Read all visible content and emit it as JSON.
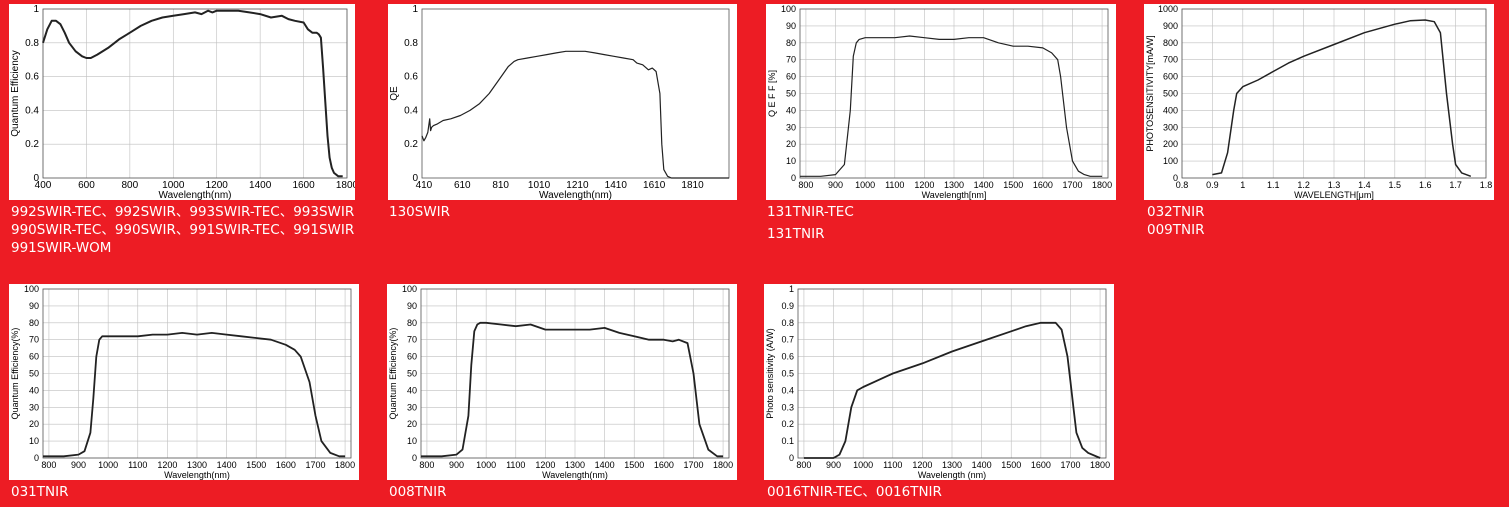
{
  "chart_data": [
    {
      "type": "line",
      "caption": [
        "992SWIR-TEC、992SWIR、993SWIR-TEC、993SWIR",
        "990SWIR-TEC、990SWIR、991SWIR-TEC、991SWIR",
        "991SWIR-WOM"
      ],
      "xlabel": "Wavelength(nm)",
      "ylabel": "Quantum Efficiency",
      "xlim": [
        400,
        1800
      ],
      "ylim": [
        0,
        1
      ],
      "grid": true,
      "xticks": [
        400,
        600,
        800,
        1000,
        1200,
        1400,
        1600,
        1800
      ],
      "xtick_labels": [
        "400",
        "600",
        "800",
        "1000",
        "1200",
        "1400",
        "1600",
        "1800"
      ],
      "yticks": [
        0,
        0.2,
        0.4,
        0.6,
        0.8,
        1
      ],
      "ytick_labels": [
        "0",
        "0.2",
        "0.4",
        "0.6",
        "0.8",
        "1"
      ],
      "x": [
        400,
        420,
        440,
        460,
        480,
        500,
        520,
        550,
        580,
        600,
        620,
        650,
        700,
        750,
        800,
        850,
        900,
        950,
        1000,
        1050,
        1100,
        1130,
        1160,
        1180,
        1200,
        1250,
        1300,
        1350,
        1400,
        1450,
        1500,
        1530,
        1560,
        1600,
        1620,
        1640,
        1660,
        1670,
        1680,
        1690,
        1700,
        1710,
        1720,
        1730,
        1740,
        1760,
        1780
      ],
      "y": [
        0.8,
        0.88,
        0.93,
        0.93,
        0.91,
        0.86,
        0.8,
        0.75,
        0.72,
        0.71,
        0.71,
        0.73,
        0.77,
        0.82,
        0.86,
        0.9,
        0.93,
        0.95,
        0.96,
        0.97,
        0.98,
        0.97,
        0.99,
        0.98,
        0.99,
        0.99,
        0.99,
        0.98,
        0.97,
        0.95,
        0.96,
        0.94,
        0.93,
        0.92,
        0.88,
        0.86,
        0.86,
        0.85,
        0.83,
        0.65,
        0.45,
        0.25,
        0.12,
        0.06,
        0.03,
        0.01,
        0.01
      ]
    },
    {
      "type": "line",
      "caption": [
        "130SWIR"
      ],
      "xlabel": "Wavelength(nm)",
      "ylabel": "QE",
      "xlim": [
        400,
        2000
      ],
      "ylim": [
        0,
        1
      ],
      "grid": false,
      "xticks": [
        410,
        610,
        810,
        1010,
        1210,
        1410,
        1610,
        1810
      ],
      "xtick_labels": [
        "410",
        "610",
        "810",
        "1010",
        "1210",
        "1410",
        "1610",
        "1810"
      ],
      "yticks": [
        0,
        0.2,
        0.4,
        0.6,
        0.8,
        1
      ],
      "ytick_labels": [
        "0",
        "0.2",
        "0.4",
        "0.6",
        "0.8",
        "1"
      ],
      "x": [
        400,
        410,
        420,
        430,
        440,
        445,
        450,
        460,
        480,
        510,
        550,
        600,
        650,
        700,
        750,
        800,
        850,
        880,
        900,
        950,
        1000,
        1050,
        1100,
        1150,
        1200,
        1250,
        1300,
        1350,
        1400,
        1450,
        1500,
        1520,
        1550,
        1580,
        1600,
        1620,
        1640,
        1650,
        1660,
        1680,
        1700,
        1750,
        1800,
        1900,
        2000
      ],
      "y": [
        0.25,
        0.22,
        0.24,
        0.27,
        0.35,
        0.28,
        0.3,
        0.31,
        0.32,
        0.34,
        0.35,
        0.37,
        0.4,
        0.44,
        0.5,
        0.58,
        0.66,
        0.69,
        0.7,
        0.71,
        0.72,
        0.73,
        0.74,
        0.75,
        0.75,
        0.75,
        0.74,
        0.73,
        0.72,
        0.71,
        0.7,
        0.68,
        0.67,
        0.64,
        0.65,
        0.63,
        0.5,
        0.2,
        0.05,
        0.01,
        0.0,
        0.0,
        0.0,
        0.0,
        0.0
      ]
    },
    {
      "type": "line",
      "caption": [
        "131TNIR-TEC",
        "131TNIR"
      ],
      "xlabel": "Wavelength[nm]",
      "ylabel": "Q E F F [%]",
      "xlim": [
        780,
        1820
      ],
      "ylim": [
        0,
        100
      ],
      "grid": true,
      "xticks": [
        800,
        900,
        1000,
        1100,
        1200,
        1300,
        1400,
        1500,
        1600,
        1700,
        1800
      ],
      "xtick_labels": [
        "800",
        "900",
        "1000",
        "1100",
        "1200",
        "1300",
        "1400",
        "1500",
        "1600",
        "1700",
        "1800"
      ],
      "yticks": [
        0,
        10,
        20,
        30,
        40,
        50,
        60,
        70,
        80,
        90,
        100
      ],
      "ytick_labels": [
        "0",
        "10",
        "20",
        "30",
        "40",
        "50",
        "60",
        "70",
        "80",
        "90",
        "100"
      ],
      "x": [
        780,
        850,
        900,
        930,
        950,
        960,
        970,
        980,
        1000,
        1050,
        1100,
        1150,
        1200,
        1250,
        1300,
        1350,
        1400,
        1450,
        1500,
        1550,
        1600,
        1630,
        1650,
        1660,
        1680,
        1700,
        1720,
        1740,
        1760,
        1800
      ],
      "y": [
        1,
        1,
        2,
        8,
        40,
        72,
        80,
        82,
        83,
        83,
        83,
        84,
        83,
        82,
        82,
        83,
        83,
        80,
        78,
        78,
        77,
        74,
        70,
        60,
        30,
        10,
        4,
        2,
        1,
        1
      ]
    },
    {
      "type": "line",
      "caption": [
        "032TNIR",
        "009TNIR"
      ],
      "xlabel": "WAVELENGTH[μm]",
      "ylabel": "PHOTOSENSITIVITY[mA/W]",
      "xlim": [
        0.8,
        1.8
      ],
      "ylim": [
        0,
        1000
      ],
      "grid": true,
      "xticks": [
        0.8,
        0.9,
        1.0,
        1.1,
        1.2,
        1.3,
        1.4,
        1.5,
        1.6,
        1.7,
        1.8
      ],
      "xtick_labels": [
        "0.8",
        "0.9",
        "1",
        "1.1",
        "1.2",
        "1.3",
        "1.4",
        "1.5",
        "1.6",
        "1.7",
        "1.8"
      ],
      "yticks": [
        0,
        100,
        200,
        300,
        400,
        500,
        600,
        700,
        800,
        900,
        1000
      ],
      "ytick_labels": [
        "0",
        "100",
        "200",
        "300",
        "400",
        "500",
        "600",
        "700",
        "800",
        "900",
        "1000"
      ],
      "x": [
        0.9,
        0.93,
        0.95,
        0.97,
        0.98,
        1.0,
        1.05,
        1.1,
        1.15,
        1.2,
        1.3,
        1.4,
        1.5,
        1.55,
        1.6,
        1.63,
        1.65,
        1.67,
        1.69,
        1.7,
        1.72,
        1.75
      ],
      "y": [
        20,
        30,
        150,
        400,
        500,
        540,
        580,
        630,
        680,
        720,
        790,
        860,
        910,
        930,
        935,
        925,
        860,
        500,
        200,
        80,
        30,
        10
      ]
    },
    {
      "type": "line",
      "caption": [
        "031TNIR"
      ],
      "xlabel": "Wavelength(nm)",
      "ylabel": "Quantum Efficiency(%)",
      "xlim": [
        780,
        1820
      ],
      "ylim": [
        0,
        100
      ],
      "grid": true,
      "xticks": [
        800,
        900,
        1000,
        1100,
        1200,
        1300,
        1400,
        1500,
        1600,
        1700,
        1800
      ],
      "xtick_labels": [
        "800",
        "900",
        "1000",
        "1100",
        "1200",
        "1300",
        "1400",
        "1500",
        "1600",
        "1700",
        "1800"
      ],
      "yticks": [
        0,
        10,
        20,
        30,
        40,
        50,
        60,
        70,
        80,
        90,
        100
      ],
      "ytick_labels": [
        "0",
        "10",
        "20",
        "30",
        "40",
        "50",
        "60",
        "70",
        "80",
        "90",
        "100"
      ],
      "x": [
        780,
        850,
        900,
        920,
        940,
        950,
        960,
        970,
        980,
        1000,
        1050,
        1100,
        1150,
        1200,
        1250,
        1300,
        1350,
        1400,
        1450,
        1500,
        1550,
        1600,
        1630,
        1650,
        1680,
        1700,
        1720,
        1750,
        1780,
        1800
      ],
      "y": [
        1,
        1,
        2,
        4,
        15,
        35,
        60,
        70,
        72,
        72,
        72,
        72,
        73,
        73,
        74,
        73,
        74,
        73,
        72,
        71,
        70,
        67,
        64,
        60,
        45,
        25,
        10,
        3,
        1,
        1
      ]
    },
    {
      "type": "line",
      "caption": [
        "008TNIR"
      ],
      "xlabel": "Wavelength(nm)",
      "ylabel": "Quantum Efficiency(%)",
      "xlim": [
        780,
        1820
      ],
      "ylim": [
        0,
        100
      ],
      "grid": true,
      "xticks": [
        800,
        900,
        1000,
        1100,
        1200,
        1300,
        1400,
        1500,
        1600,
        1700,
        1800
      ],
      "xtick_labels": [
        "800",
        "900",
        "1000",
        "1100",
        "1200",
        "1300",
        "1400",
        "1500",
        "1600",
        "1700",
        "1800"
      ],
      "yticks": [
        0,
        10,
        20,
        30,
        40,
        50,
        60,
        70,
        80,
        90,
        100
      ],
      "ytick_labels": [
        "0",
        "10",
        "20",
        "30",
        "40",
        "50",
        "60",
        "70",
        "80",
        "90",
        "100"
      ],
      "x": [
        780,
        850,
        900,
        920,
        940,
        950,
        960,
        970,
        980,
        1000,
        1050,
        1100,
        1150,
        1200,
        1250,
        1300,
        1350,
        1400,
        1450,
        1500,
        1550,
        1600,
        1630,
        1650,
        1680,
        1700,
        1720,
        1750,
        1780,
        1800
      ],
      "y": [
        1,
        1,
        2,
        5,
        25,
        55,
        75,
        79,
        80,
        80,
        79,
        78,
        79,
        76,
        76,
        76,
        76,
        77,
        74,
        72,
        70,
        70,
        69,
        70,
        68,
        50,
        20,
        5,
        1,
        1
      ]
    },
    {
      "type": "line",
      "caption": [
        "0016TNIR-TEC、0016TNIR"
      ],
      "xlabel": "Wavelength (nm)",
      "ylabel": "Photo sensitivity (A/W)",
      "xlim": [
        780,
        1820
      ],
      "ylim": [
        0,
        1
      ],
      "grid": true,
      "xticks": [
        800,
        900,
        1000,
        1100,
        1200,
        1300,
        1400,
        1500,
        1600,
        1700,
        1800
      ],
      "xtick_labels": [
        "800",
        "900",
        "1000",
        "1100",
        "1200",
        "1300",
        "1400",
        "1500",
        "1600",
        "1700",
        "1800"
      ],
      "yticks": [
        0,
        0.1,
        0.2,
        0.3,
        0.4,
        0.5,
        0.6,
        0.7,
        0.8,
        0.9,
        1
      ],
      "ytick_labels": [
        "0",
        "0.1",
        "0.2",
        "0.3",
        "0.4",
        "0.5",
        "0.6",
        "0.7",
        "0.8",
        "0.9",
        "1"
      ],
      "x": [
        800,
        850,
        900,
        920,
        940,
        960,
        980,
        1000,
        1100,
        1200,
        1300,
        1400,
        1500,
        1550,
        1600,
        1650,
        1670,
        1690,
        1700,
        1710,
        1720,
        1740,
        1760,
        1800
      ],
      "y": [
        0.0,
        0.0,
        0.0,
        0.02,
        0.1,
        0.3,
        0.4,
        0.42,
        0.5,
        0.56,
        0.63,
        0.69,
        0.75,
        0.78,
        0.8,
        0.8,
        0.76,
        0.6,
        0.45,
        0.3,
        0.15,
        0.06,
        0.03,
        0.0
      ]
    }
  ]
}
